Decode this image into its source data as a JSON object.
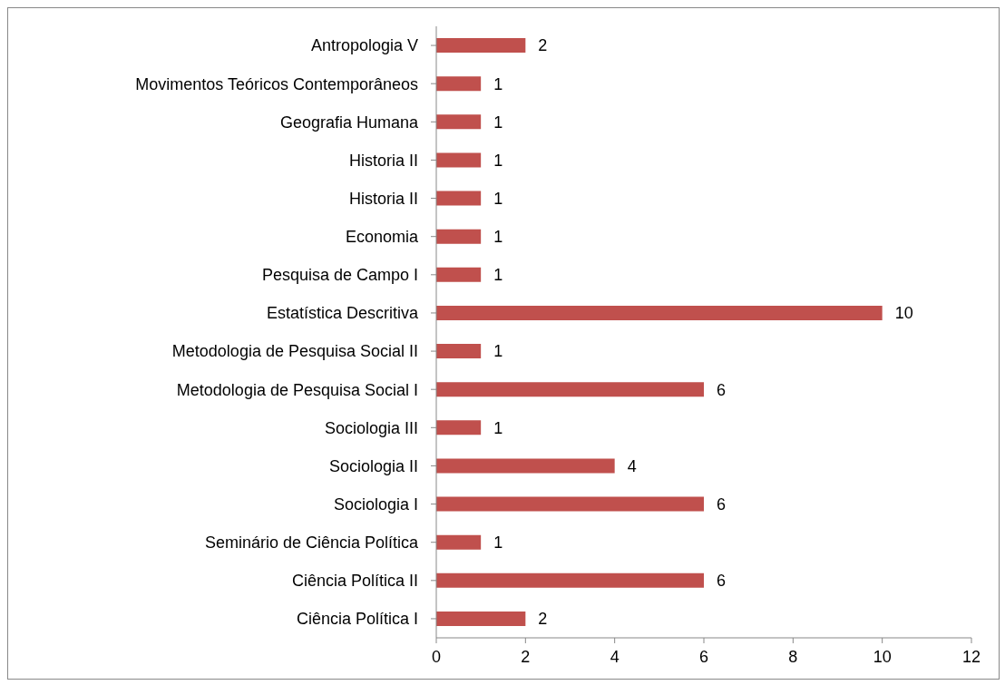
{
  "chart_data": {
    "type": "bar",
    "orientation": "horizontal",
    "categories": [
      "Antropologia V",
      "Movimentos Teóricos Contemporâneos",
      "Geografia Humana",
      "Historia II",
      "Historia II",
      "Economia",
      "Pesquisa de Campo I",
      "Estatística Descritiva",
      "Metodologia de Pesquisa Social II",
      "Metodologia de Pesquisa Social I",
      "Sociologia III",
      "Sociologia II",
      "Sociologia I",
      "Seminário de Ciência Política",
      "Ciência Política II",
      "Ciência Política I"
    ],
    "values": [
      2,
      1,
      1,
      1,
      1,
      1,
      1,
      10,
      1,
      6,
      1,
      4,
      6,
      1,
      6,
      2
    ],
    "color": "#c0504d",
    "xlim": [
      0,
      12
    ],
    "xticks": [
      0,
      2,
      4,
      6,
      8,
      10,
      12
    ],
    "data_labels": true,
    "grid": false
  }
}
